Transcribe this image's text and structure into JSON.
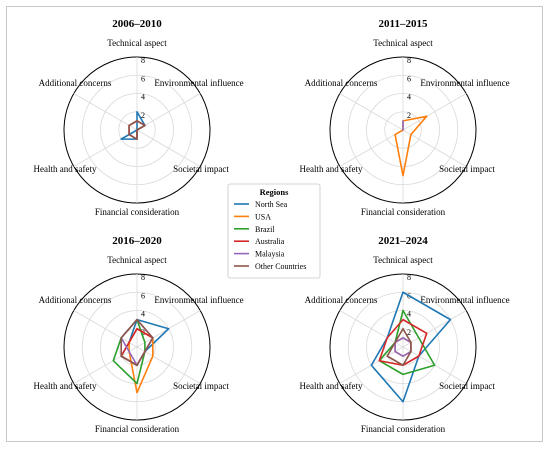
{
  "chart_data": {
    "type": "radar",
    "axes": [
      "Technical aspect",
      "Environmental influence",
      "Societal impact",
      "Financial consideration",
      "Health and safety",
      "Additional concerns"
    ],
    "r_max": 8,
    "r_ticks": [
      2,
      4,
      6,
      8
    ],
    "grid": true,
    "legend": {
      "title": "Regions",
      "position": "center",
      "entries": [
        {
          "name": "North Sea",
          "color": "#1f77b4"
        },
        {
          "name": "USA",
          "color": "#ff7f0e"
        },
        {
          "name": "Brazil",
          "color": "#2ca02c"
        },
        {
          "name": "Australia",
          "color": "#d62728"
        },
        {
          "name": "Malaysia",
          "color": "#9467bd"
        },
        {
          "name": "Other Countries",
          "color": "#8c564b"
        }
      ]
    },
    "panels": [
      {
        "title": "2006–2010",
        "series": [
          {
            "name": "North Sea",
            "values": [
              2,
              1,
              0,
              1,
              2,
              0
            ]
          },
          {
            "name": "USA",
            "values": [
              0,
              0,
              0,
              0,
              0,
              0
            ]
          },
          {
            "name": "Brazil",
            "values": [
              0,
              0,
              0,
              0,
              0,
              0
            ]
          },
          {
            "name": "Australia",
            "values": [
              1,
              1,
              0,
              1,
              1,
              1
            ]
          },
          {
            "name": "Malaysia",
            "values": [
              0,
              0,
              0,
              0,
              0,
              0
            ]
          },
          {
            "name": "Other Countries",
            "values": [
              1,
              1,
              0,
              1,
              1,
              1
            ]
          }
        ]
      },
      {
        "title": "2011–2015",
        "series": [
          {
            "name": "North Sea",
            "values": [
              0,
              0,
              0,
              0,
              0,
              0
            ]
          },
          {
            "name": "USA",
            "values": [
              1,
              3,
              1,
              5,
              1,
              0
            ]
          },
          {
            "name": "Brazil",
            "values": [
              0,
              0,
              0,
              0,
              0,
              0
            ]
          },
          {
            "name": "Australia",
            "values": [
              0,
              0,
              0,
              0,
              0,
              0
            ]
          },
          {
            "name": "Malaysia",
            "values": [
              1,
              0,
              0,
              0,
              0,
              0
            ]
          },
          {
            "name": "Other Countries",
            "values": [
              0,
              0,
              0,
              0,
              0,
              0
            ]
          }
        ]
      },
      {
        "title": "2016–2020",
        "series": [
          {
            "name": "North Sea",
            "values": [
              3,
              4,
              1,
              2,
              2,
              1
            ]
          },
          {
            "name": "USA",
            "values": [
              2,
              2,
              2,
              5,
              1,
              1
            ]
          },
          {
            "name": "Brazil",
            "values": [
              3,
              1,
              1,
              4,
              3,
              2
            ]
          },
          {
            "name": "Australia",
            "values": [
              2,
              2,
              1,
              2,
              2,
              1
            ]
          },
          {
            "name": "Malaysia",
            "values": [
              3,
              2,
              1,
              2,
              1,
              2
            ]
          },
          {
            "name": "Other Countries",
            "values": [
              3,
              2,
              1,
              2,
              2,
              2
            ]
          }
        ]
      },
      {
        "title": "2021–2024",
        "series": [
          {
            "name": "North Sea",
            "values": [
              6,
              6,
              2,
              6,
              4,
              2
            ]
          },
          {
            "name": "USA",
            "values": [
              1,
              1,
              1,
              1,
              1,
              1
            ]
          },
          {
            "name": "Brazil",
            "values": [
              4,
              2,
              4,
              3,
              3,
              1
            ]
          },
          {
            "name": "Australia",
            "values": [
              3,
              3,
              2,
              2,
              3,
              2
            ]
          },
          {
            "name": "Malaysia",
            "values": [
              1,
              1,
              1,
              1,
              1,
              1
            ]
          },
          {
            "name": "Other Countries",
            "values": [
              2,
              1,
              1,
              2,
              2,
              1
            ]
          }
        ]
      }
    ]
  }
}
